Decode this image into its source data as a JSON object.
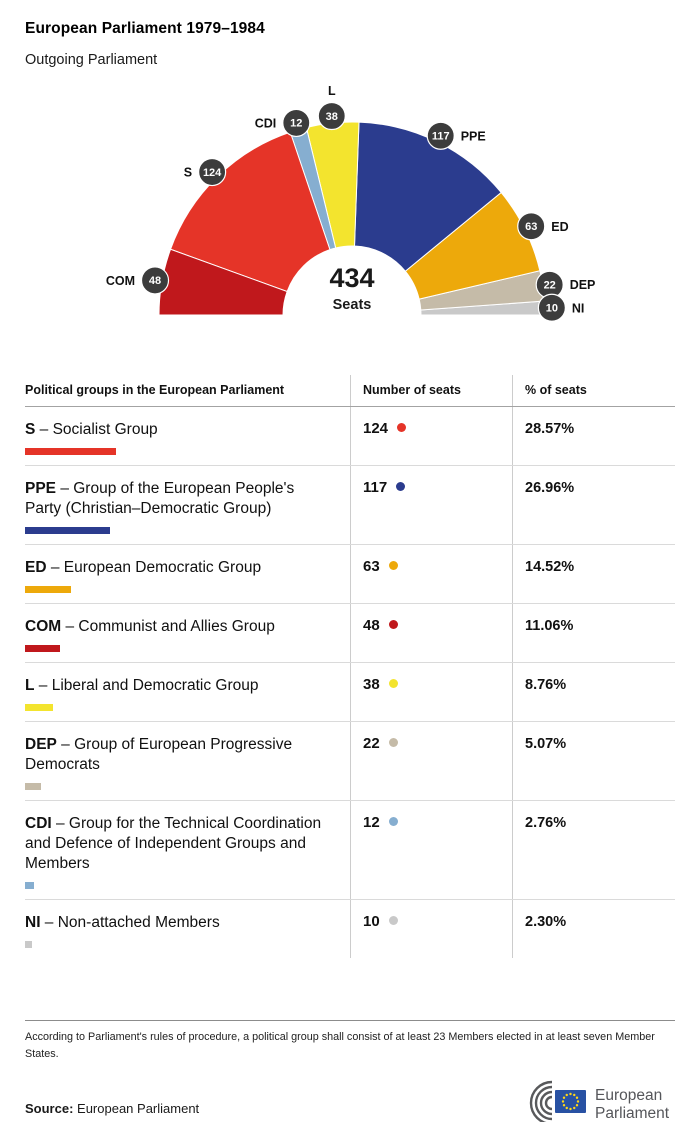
{
  "header": {
    "title": "European Parliament 1979–1984",
    "subtitle": "Outgoing Parliament"
  },
  "chart_data": {
    "type": "hemicycle",
    "total": 434,
    "total_label": "Seats",
    "arrangement": "semicircle, groups ordered left to right",
    "groups": [
      {
        "code": "COM",
        "seats": 48,
        "color": "#c0181c"
      },
      {
        "code": "S",
        "seats": 124,
        "color": "#e53428"
      },
      {
        "code": "CDI",
        "seats": 12,
        "color": "#86aed0"
      },
      {
        "code": "L",
        "seats": 38,
        "color": "#f3e42e"
      },
      {
        "code": "PPE",
        "seats": 117,
        "color": "#2b3c8e"
      },
      {
        "code": "ED",
        "seats": 63,
        "color": "#eda90b"
      },
      {
        "code": "DEP",
        "seats": 22,
        "color": "#c5bba8"
      },
      {
        "code": "NI",
        "seats": 10,
        "color": "#c9c9c9"
      }
    ]
  },
  "table": {
    "separator": "–",
    "headers": [
      "Political groups in the European Parliament",
      "Number of seats",
      "% of seats"
    ],
    "rows": [
      {
        "code": "S",
        "name": "Socialist Group",
        "seats": 124,
        "pct": "28.57%",
        "color": "#e53428"
      },
      {
        "code": "PPE",
        "name": "Group of the European People's Party (Christian–Democratic Group)",
        "seats": 117,
        "pct": "26.96%",
        "color": "#2b3c8e"
      },
      {
        "code": "ED",
        "name": "European Democratic Group",
        "seats": 63,
        "pct": "14.52%",
        "color": "#eda90b"
      },
      {
        "code": "COM",
        "name": "Communist and Allies Group",
        "seats": 48,
        "pct": "11.06%",
        "color": "#c0181c"
      },
      {
        "code": "L",
        "name": "Liberal and Democratic Group",
        "seats": 38,
        "pct": "8.76%",
        "color": "#f3e42e"
      },
      {
        "code": "DEP",
        "name": "Group of European Progressive Democrats",
        "seats": 22,
        "pct": "5.07%",
        "color": "#c5bba8"
      },
      {
        "code": "CDI",
        "name": "Group for the Technical Coordination and Defence of Independent Groups and Members",
        "seats": 12,
        "pct": "2.76%",
        "color": "#86aed0"
      },
      {
        "code": "NI",
        "name": "Non-attached Members",
        "seats": 10,
        "pct": "2.30%",
        "color": "#c9c9c9"
      }
    ]
  },
  "footnote": "According to Parliament's rules of procedure, a political group shall consist of at least 23 Members elected in at least seven Member States.",
  "source": {
    "label": "Source:",
    "text": "European Parliament"
  },
  "logo": {
    "line1": "European",
    "line2": "Parliament"
  }
}
